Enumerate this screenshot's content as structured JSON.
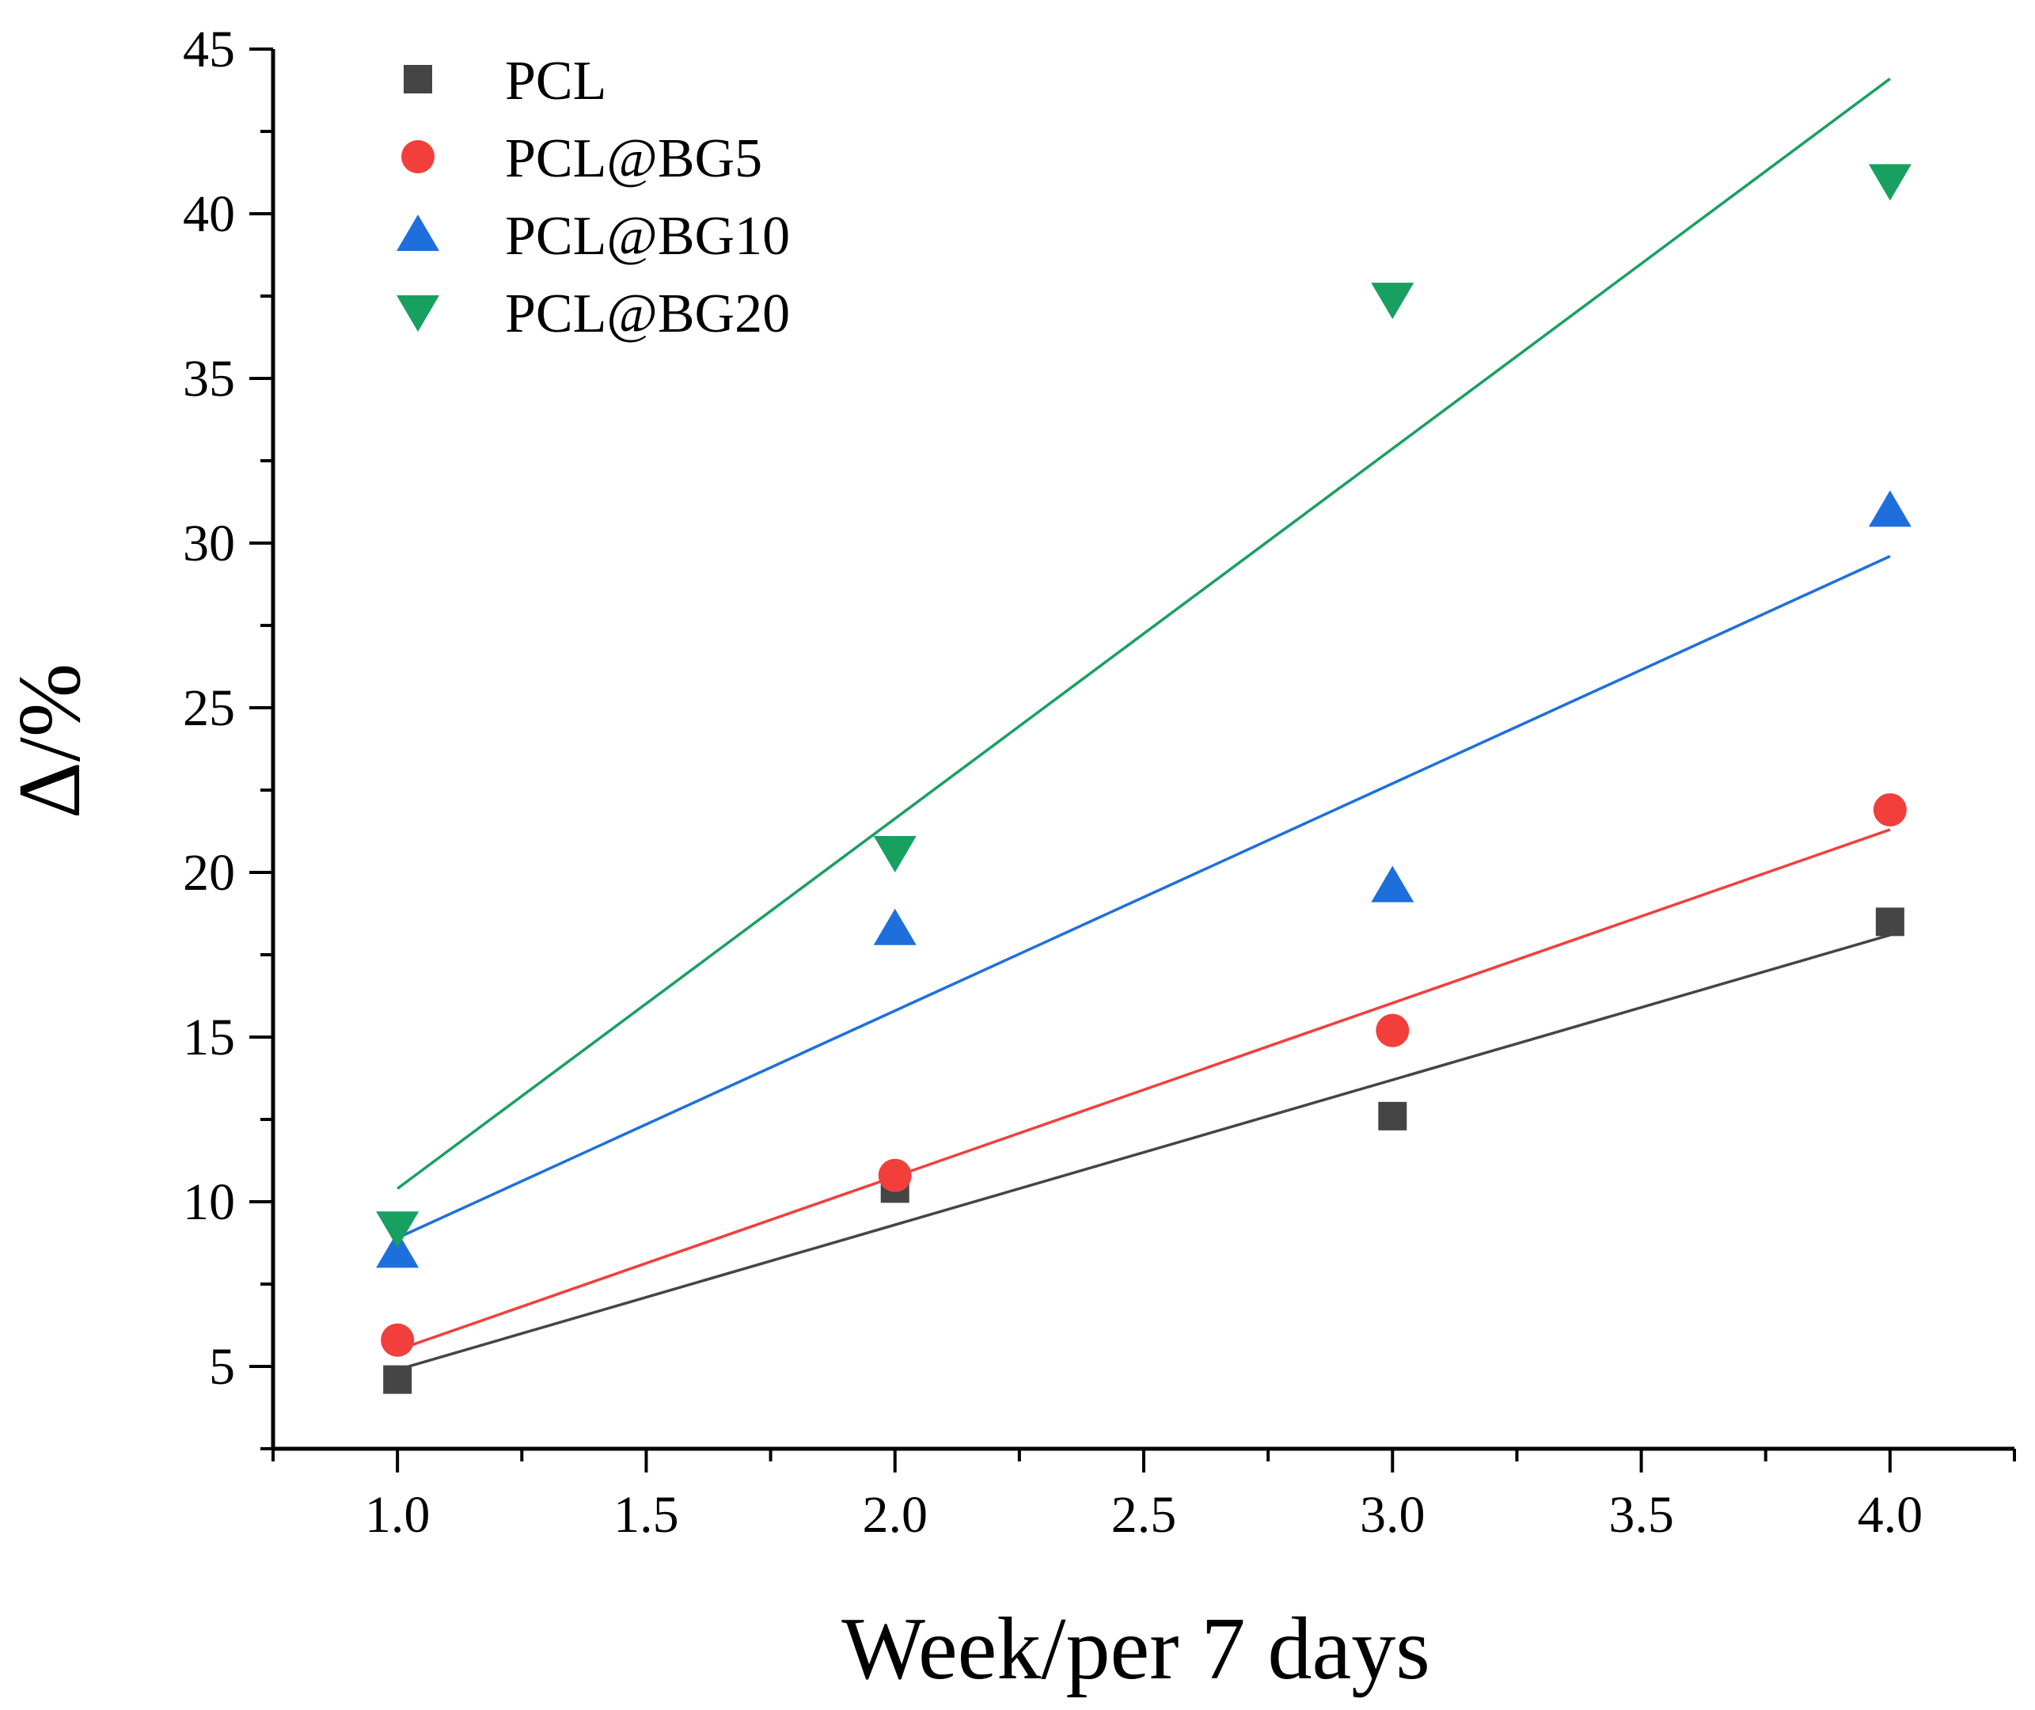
{
  "chart_data": {
    "type": "scatter",
    "xlabel": "Week/per 7 days",
    "ylabel": "Δ/%",
    "xlim": [
      0.75,
      4.25
    ],
    "ylim": [
      2.5,
      45
    ],
    "xticks": [
      1.0,
      1.5,
      2.0,
      2.5,
      3.0,
      3.5,
      4.0
    ],
    "xtick_labels": [
      "1.0",
      "1.5",
      "2.0",
      "2.5",
      "3.0",
      "3.5",
      "4.0"
    ],
    "yticks": [
      5,
      10,
      15,
      20,
      25,
      30,
      35,
      40,
      45
    ],
    "ytick_labels": [
      "5",
      "10",
      "15",
      "20",
      "25",
      "30",
      "35",
      "40",
      "45"
    ],
    "legend_position": "top-left",
    "series": [
      {
        "name": "PCL",
        "marker": "square",
        "color": "#454545",
        "x": [
          1,
          2,
          3,
          4
        ],
        "y": [
          4.6,
          10.4,
          12.6,
          18.5
        ],
        "fit": {
          "x": [
            1,
            4
          ],
          "y": [
            4.9,
            18.1
          ]
        }
      },
      {
        "name": "PCL@BG5",
        "marker": "circle",
        "color": "#f23f3c",
        "x": [
          1,
          2,
          3,
          4
        ],
        "y": [
          5.8,
          10.8,
          15.2,
          21.9
        ],
        "fit": {
          "x": [
            1,
            4
          ],
          "y": [
            5.5,
            21.3
          ]
        }
      },
      {
        "name": "PCL@BG10",
        "marker": "triangle-up",
        "color": "#1e6fdc",
        "x": [
          1,
          2,
          3,
          4
        ],
        "y": [
          8.5,
          18.3,
          19.6,
          31.0
        ],
        "fit": {
          "x": [
            1,
            4
          ],
          "y": [
            8.9,
            29.6
          ]
        }
      },
      {
        "name": "PCL@BG20",
        "marker": "triangle-down",
        "color": "#18a060",
        "x": [
          1,
          2,
          3,
          4
        ],
        "y": [
          9.2,
          20.6,
          37.4,
          41.0
        ],
        "fit": {
          "x": [
            1,
            4
          ],
          "y": [
            10.4,
            44.1
          ]
        }
      }
    ]
  }
}
